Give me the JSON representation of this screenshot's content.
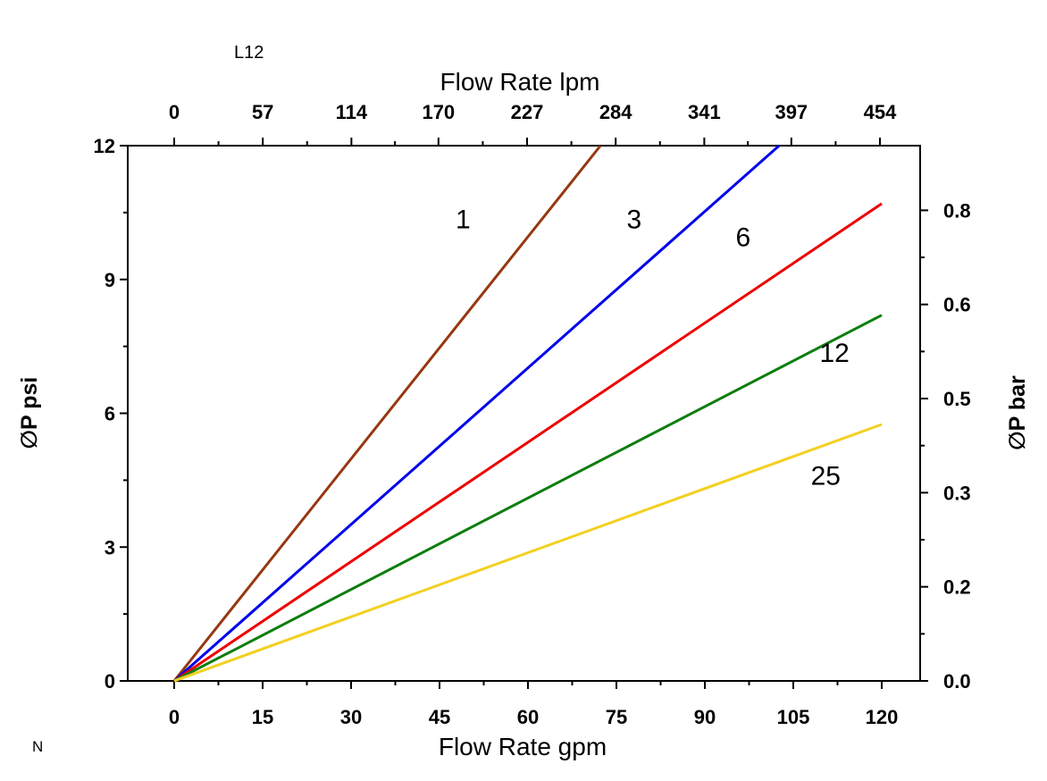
{
  "annotations": {
    "top_left": "L12",
    "bottom_left": "N"
  },
  "chart_data": {
    "type": "line",
    "title": "",
    "grid": false,
    "legend": "none (inline series labels)",
    "axes": {
      "x_bottom": {
        "label": "Flow Rate gpm",
        "ticks": [
          "0",
          "15",
          "30",
          "45",
          "60",
          "75",
          "90",
          "105",
          "120"
        ],
        "range": [
          0,
          120
        ]
      },
      "x_top": {
        "label": "Flow Rate lpm",
        "ticks": [
          "0",
          "57",
          "114",
          "170",
          "227",
          "284",
          "341",
          "397",
          "454"
        ],
        "range": [
          0,
          454
        ]
      },
      "y_left": {
        "label": "∅P psi",
        "ticks": [
          "0",
          "3",
          "6",
          "9",
          "12"
        ],
        "range": [
          0,
          12
        ]
      },
      "y_right": {
        "label": "∅P bar",
        "ticks": [
          "0.0",
          "0.2",
          "0.3",
          "0.5",
          "0.6",
          "0.8"
        ],
        "top_psi": 10.55
      }
    },
    "series": [
      {
        "name": "1",
        "color": "#953812",
        "points": [
          [
            0,
            0
          ],
          [
            72.3,
            12
          ]
        ],
        "label_at": [
          49,
          10.15
        ]
      },
      {
        "name": "3",
        "color": "#0000ee",
        "points": [
          [
            0,
            0
          ],
          [
            102.6,
            12
          ]
        ],
        "label_at": [
          78,
          10.15
        ]
      },
      {
        "name": "6",
        "color": "#ee0000",
        "points": [
          [
            0,
            0
          ],
          [
            120,
            10.7
          ]
        ],
        "label_at": [
          96.5,
          9.75
        ]
      },
      {
        "name": "12",
        "color": "#0e7d0e",
        "points": [
          [
            0,
            0
          ],
          [
            120,
            8.2
          ]
        ],
        "label_at": [
          112,
          7.15
        ]
      },
      {
        "name": "25",
        "color": "#f3d021",
        "points": [
          [
            0,
            0
          ],
          [
            120,
            5.75
          ]
        ],
        "label_at": [
          110.5,
          4.4
        ]
      }
    ]
  }
}
